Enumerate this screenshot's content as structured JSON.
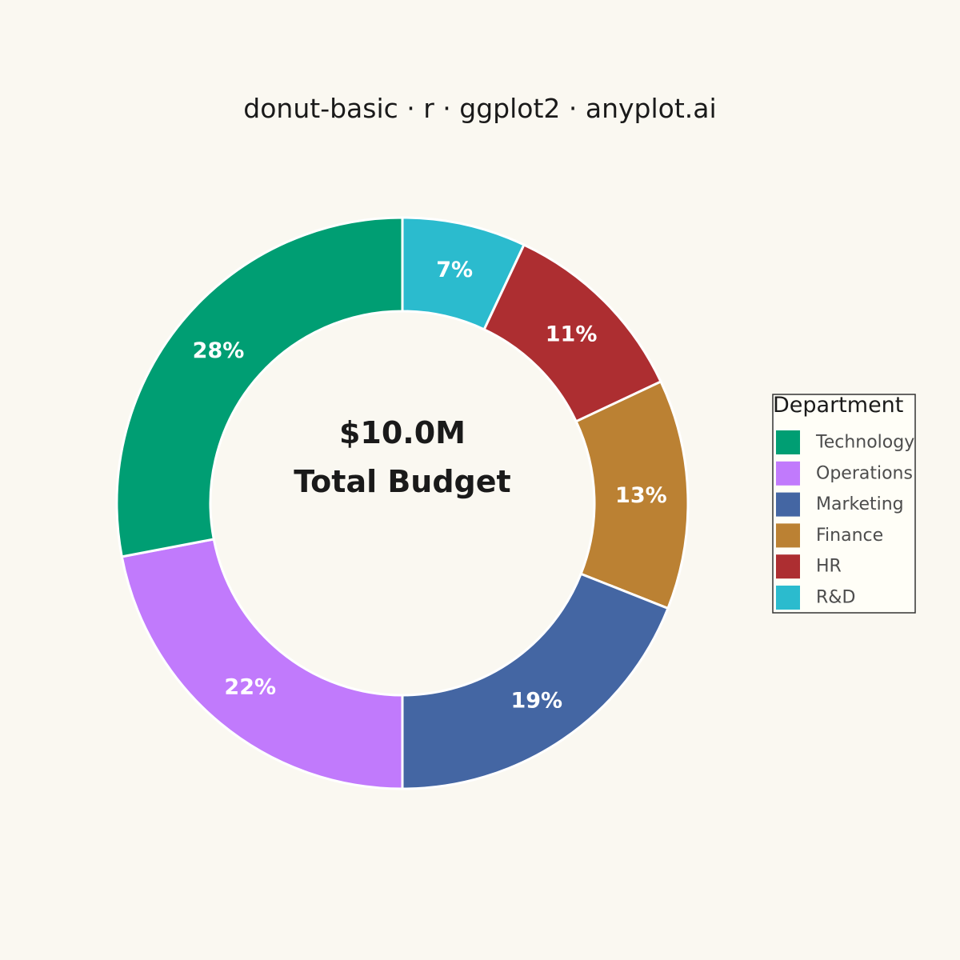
{
  "chart_data": {
    "type": "pie",
    "title": "donut-basic · r · ggplot2 · anyplot.ai",
    "center_label": {
      "line1": "$10.0M",
      "line2": "Total Budget"
    },
    "legend_title": "Department",
    "legend_position": "right",
    "slices": [
      {
        "label": "Technology",
        "value": 28,
        "percent_label": "28%",
        "color": "#009E73"
      },
      {
        "label": "Operations",
        "value": 22,
        "percent_label": "22%",
        "color": "#C17AFC"
      },
      {
        "label": "Marketing",
        "value": 19,
        "percent_label": "19%",
        "color": "#4466A3"
      },
      {
        "label": "Finance",
        "value": 13,
        "percent_label": "13%",
        "color": "#BB8133"
      },
      {
        "label": "HR",
        "value": 11,
        "percent_label": "11%",
        "color": "#AD2E31"
      },
      {
        "label": "R&D",
        "value": 7,
        "percent_label": "7%",
        "color": "#2BBBCE"
      }
    ],
    "draw_order": [
      "R&D",
      "HR",
      "Finance",
      "Marketing",
      "Operations",
      "Technology"
    ],
    "background_color": "#FAF8F1"
  }
}
